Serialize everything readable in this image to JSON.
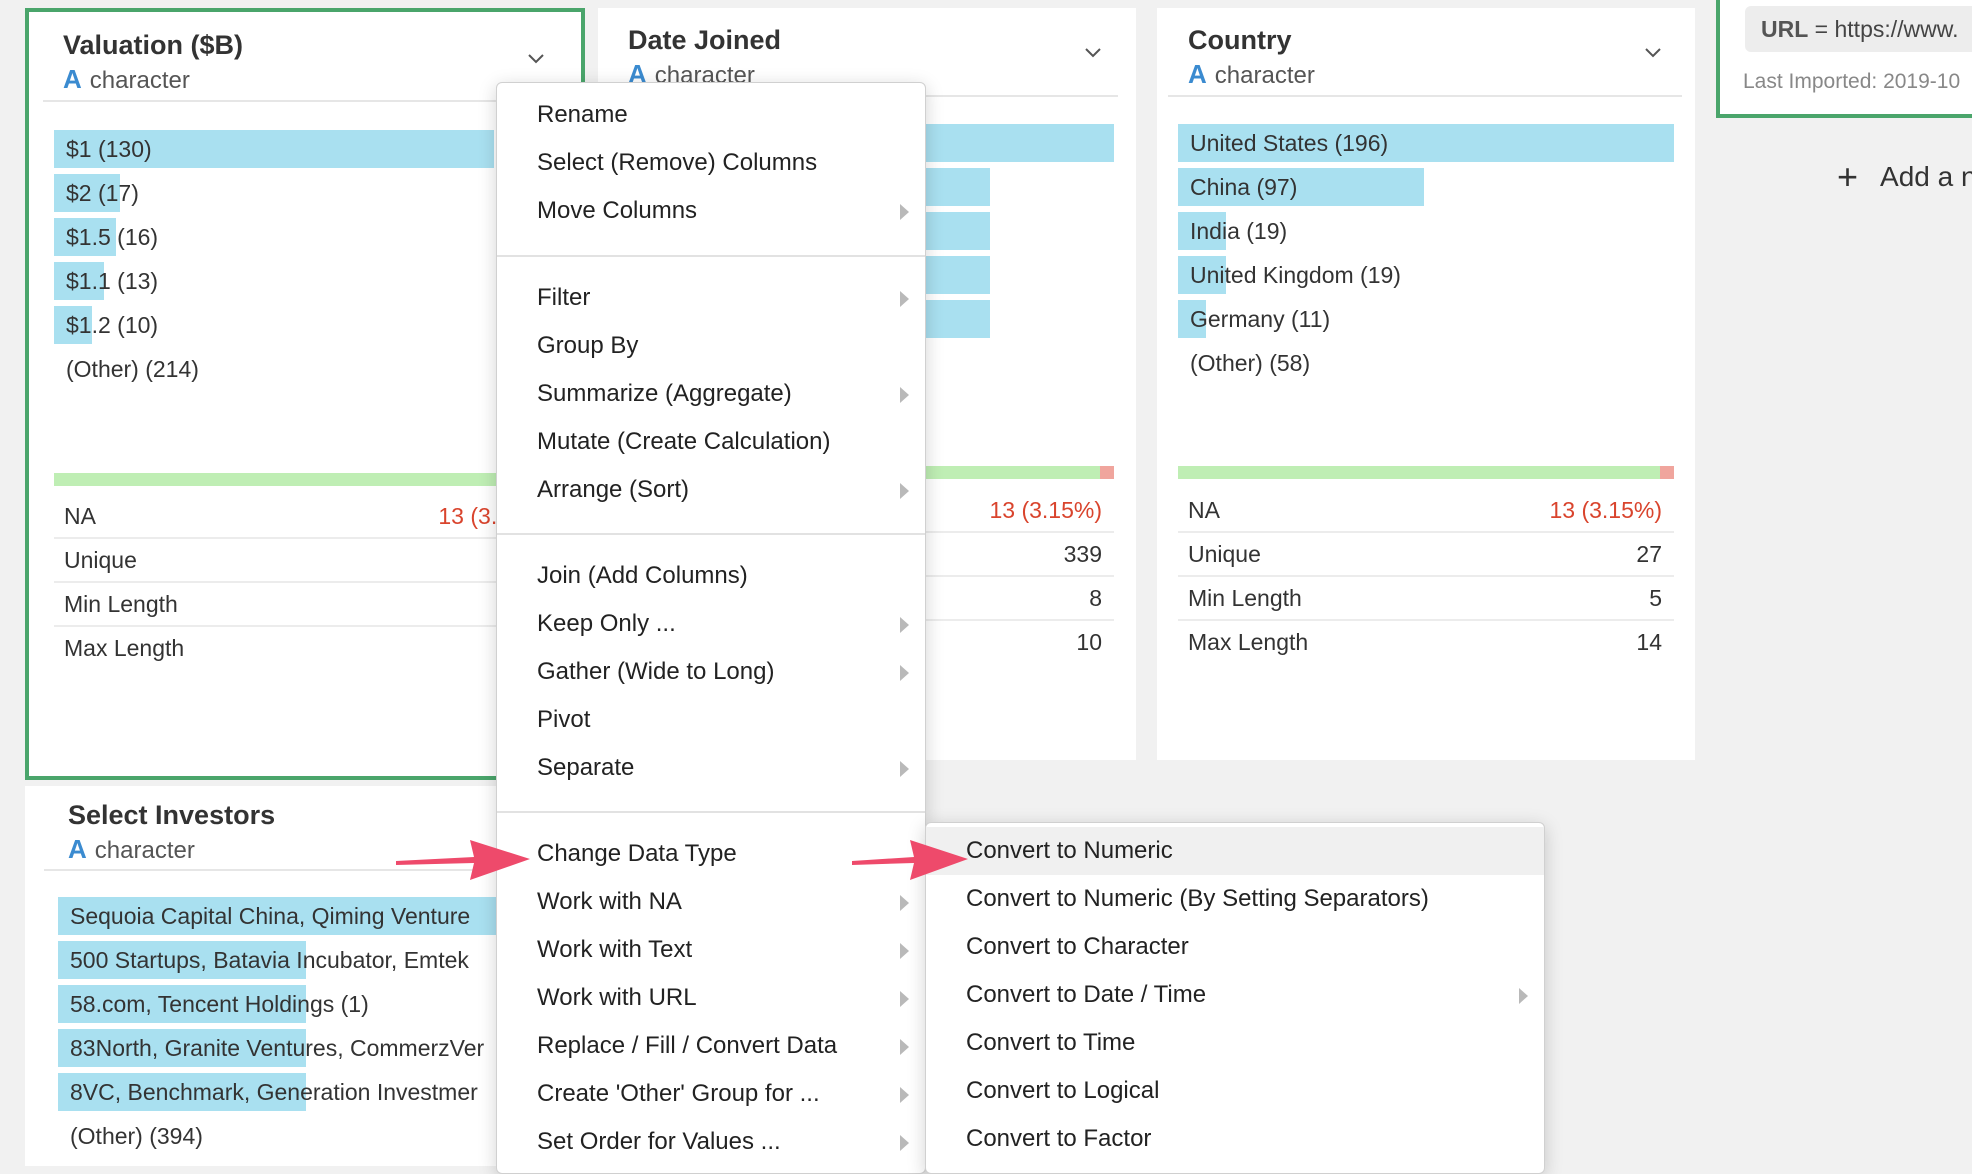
{
  "columns": {
    "valuation": {
      "title": "Valuation ($B)",
      "type_letter": "A",
      "type": "character",
      "values": [
        {
          "label": "$1 (130)",
          "fraction": 1.0
        },
        {
          "label": "$2 (17)",
          "fraction": 0.131
        },
        {
          "label": "$1.5 (16)",
          "fraction": 0.123
        },
        {
          "label": "$1.1 (13)",
          "fraction": 0.1
        },
        {
          "label": "$1.2 (10)",
          "fraction": 0.077
        }
      ],
      "other": "(Other) (214)",
      "stats": {
        "na_label": "NA",
        "na_value": "13 (3.1",
        "unique": "Unique",
        "min_length": "Min Length",
        "max_length": "Max Length"
      }
    },
    "date_joined": {
      "title": "Date Joined",
      "type_letter": "A",
      "type": "character",
      "stats": {
        "na_value": "13 (3.15%)",
        "unique_value": "339",
        "min_value": "8",
        "max_value": "10"
      }
    },
    "country": {
      "title": "Country",
      "type_letter": "A",
      "type": "character",
      "values": [
        {
          "label": "United States (196)",
          "fraction": 1.0
        },
        {
          "label": "China (97)",
          "fraction": 0.495
        },
        {
          "label": "India (19)",
          "fraction": 0.097
        },
        {
          "label": "United Kingdom (19)",
          "fraction": 0.097
        },
        {
          "label": "Germany (11)",
          "fraction": 0.056
        }
      ],
      "other": "(Other) (58)",
      "stats": {
        "na_label": "NA",
        "na_value": "13 (3.15%)",
        "unique": "Unique",
        "unique_value": "27",
        "min_length": "Min Length",
        "min_value": "5",
        "max_length": "Max Length",
        "max_value": "14"
      }
    },
    "investors": {
      "title": "Select Investors",
      "type_letter": "A",
      "type": "character",
      "values": [
        {
          "label": "Sequoia Capital China, Qiming Venture",
          "fraction": 1.0
        },
        {
          "label": "500 Startups, Batavia Incubator, Emtek",
          "fraction": 0.56
        },
        {
          "label": "58.com, Tencent Holdings (1)",
          "fraction": 0.56
        },
        {
          "label": "83North, Granite Ventures, CommerzVer",
          "fraction": 0.56
        },
        {
          "label": "8VC, Benchmark, Generation Investmer",
          "fraction": 0.56
        }
      ],
      "other": "(Other) (394)"
    }
  },
  "source": {
    "url_key": "URL",
    "url_value": " = https://www.",
    "last_imported": "Last Imported: 2019-10"
  },
  "add_step": {
    "label": "Add a n"
  },
  "context_menu": {
    "items": [
      {
        "label": "Rename",
        "submenu": false
      },
      {
        "label": "Select (Remove) Columns",
        "submenu": false
      },
      {
        "label": "Move Columns",
        "submenu": true
      },
      {
        "label": "Filter",
        "submenu": true
      },
      {
        "label": "Group By",
        "submenu": false
      },
      {
        "label": "Summarize (Aggregate)",
        "submenu": true
      },
      {
        "label": "Mutate (Create Calculation)",
        "submenu": false
      },
      {
        "label": "Arrange (Sort)",
        "submenu": true
      },
      {
        "label": "Join (Add Columns)",
        "submenu": false
      },
      {
        "label": "Keep Only ...",
        "submenu": true
      },
      {
        "label": "Gather (Wide to Long)",
        "submenu": true
      },
      {
        "label": "Pivot",
        "submenu": false
      },
      {
        "label": "Separate",
        "submenu": true
      },
      {
        "label": "Change Data Type",
        "submenu": true
      },
      {
        "label": "Work with NA",
        "submenu": true
      },
      {
        "label": "Work with Text",
        "submenu": true
      },
      {
        "label": "Work with URL",
        "submenu": true
      },
      {
        "label": "Replace / Fill / Convert Data",
        "submenu": true
      },
      {
        "label": "Create 'Other' Group for ...",
        "submenu": true
      },
      {
        "label": "Set Order for Values ...",
        "submenu": true
      }
    ]
  },
  "submenu": {
    "items": [
      {
        "label": "Convert to Numeric",
        "highlighted": true,
        "submenu": false
      },
      {
        "label": "Convert to Numeric (By Setting Separators)",
        "highlighted": false,
        "submenu": false
      },
      {
        "label": "Convert to Character",
        "highlighted": false,
        "submenu": false
      },
      {
        "label": "Convert to Date / Time",
        "highlighted": false,
        "submenu": true
      },
      {
        "label": "Convert to Time",
        "highlighted": false,
        "submenu": false
      },
      {
        "label": "Convert to Logical",
        "highlighted": false,
        "submenu": false
      },
      {
        "label": "Convert to Factor",
        "highlighted": false,
        "submenu": false
      }
    ]
  },
  "colors": {
    "accent_green": "#4aa56b",
    "bar_blue": "#a9e0f0",
    "arrow_pink": "#ee4a6b",
    "na_red": "#d9442d"
  }
}
